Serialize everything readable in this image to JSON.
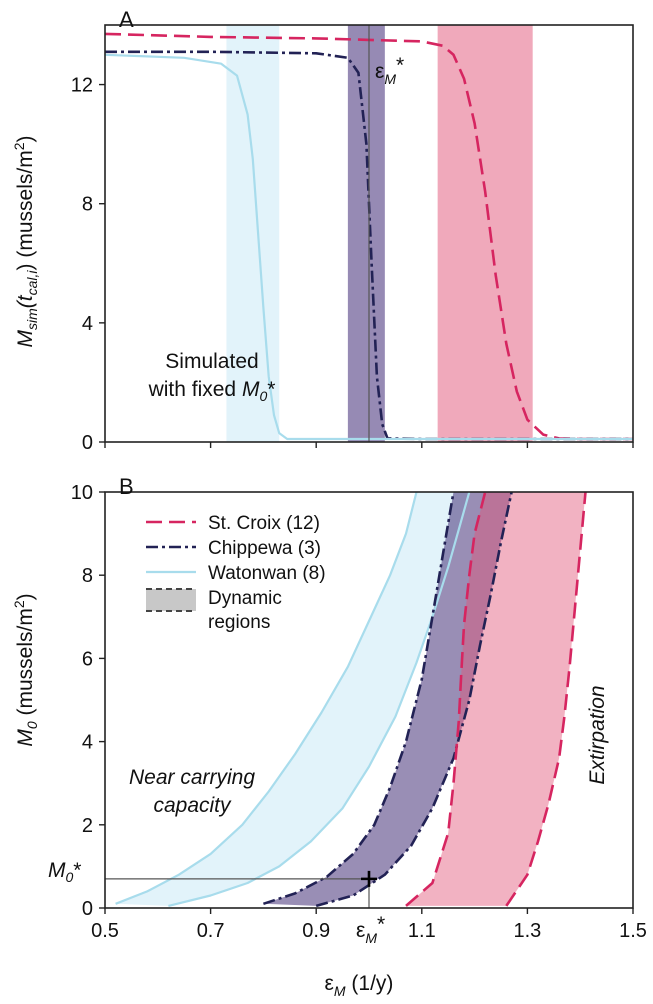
{
  "chart_data": [
    {
      "panel": "A",
      "type": "line",
      "ylabel": {
        "main": "M",
        "sub": "sim",
        "paren_open": "(t",
        "paren_sub": "cal,i",
        "paren_close": ")",
        "units": "(mussels/m",
        "units_sup": "2",
        "units_close": ")"
      },
      "xlim": [
        0.5,
        1.5
      ],
      "ylim": [
        0,
        14
      ],
      "yticks": [
        "0",
        "4",
        "8",
        "12"
      ],
      "yticks_values": [
        0,
        4,
        8,
        12
      ],
      "annotation": {
        "line1": "Simulated",
        "line2_prefix": "with fixed ",
        "line2_sym": "M",
        "line2_sub": "0",
        "line2_suffix": "*"
      },
      "eps_label": {
        "sym": "ε",
        "sub": "M",
        "sup": "*"
      },
      "eps_star": 1.0,
      "regions": [
        {
          "series": "Watonwan (8)",
          "x0": 0.73,
          "x1": 0.83
        },
        {
          "series": "Chippewa (3)",
          "x0": 0.96,
          "x1": 1.03
        },
        {
          "series": "St. Croix (12)",
          "x0": 1.13,
          "x1": 1.31
        }
      ],
      "series": [
        {
          "name": "St. Croix (12)",
          "color": "#d62560",
          "style": "dash",
          "x": [
            0.5,
            0.7,
            0.9,
            1.0,
            1.1,
            1.14,
            1.16,
            1.18,
            1.2,
            1.22,
            1.24,
            1.26,
            1.28,
            1.3,
            1.33,
            1.36,
            1.4,
            1.5
          ],
          "y": [
            13.7,
            13.6,
            13.55,
            13.5,
            13.45,
            13.3,
            13.0,
            12.2,
            10.7,
            8.4,
            5.6,
            3.3,
            1.7,
            0.75,
            0.25,
            0.12,
            0.1,
            0.1
          ]
        },
        {
          "name": "Chippewa (3)",
          "color": "#222255",
          "style": "dashdot",
          "x": [
            0.5,
            0.7,
            0.9,
            0.96,
            0.98,
            0.995,
            1.005,
            1.015,
            1.025,
            1.035,
            1.1,
            1.5
          ],
          "y": [
            13.1,
            13.1,
            13.05,
            12.9,
            12.4,
            10.0,
            6.0,
            2.2,
            0.6,
            0.12,
            0.1,
            0.1
          ]
        },
        {
          "name": "Watonwan (8)",
          "color": "#a8dcec",
          "style": "solid",
          "x": [
            0.5,
            0.65,
            0.72,
            0.75,
            0.77,
            0.78,
            0.79,
            0.8,
            0.81,
            0.82,
            0.83,
            0.845,
            0.9,
            1.5
          ],
          "y": [
            13.0,
            12.9,
            12.7,
            12.3,
            11.0,
            9.5,
            7.0,
            4.5,
            2.2,
            0.9,
            0.3,
            0.1,
            0.1,
            0.1
          ]
        }
      ]
    },
    {
      "panel": "B",
      "type": "line",
      "xlabel": {
        "sym": "ε",
        "sub": "M",
        "units": " (1/y)"
      },
      "ylabel": {
        "main": "M",
        "sub": "0",
        "units": " (mussels/m",
        "units_sup": "2",
        "units_close": ")"
      },
      "xlim": [
        0.5,
        1.5
      ],
      "ylim": [
        0,
        10
      ],
      "xticks": [
        "0.5",
        "0.7",
        "0.9",
        "1.1",
        "1.3",
        "1.5"
      ],
      "xticks_values": [
        0.5,
        0.7,
        0.9,
        1.1,
        1.3,
        1.5
      ],
      "yticks": [
        "0",
        "2",
        "4",
        "6",
        "8",
        "10"
      ],
      "yticks_values": [
        0,
        2,
        4,
        6,
        8,
        10
      ],
      "m0_label": {
        "sym": "M",
        "sub": "0",
        "sup": "*"
      },
      "m0_star": 0.7,
      "eps_label": {
        "sym": "ε",
        "sub": "M",
        "sup": "*"
      },
      "eps_star": 1.0,
      "marker": {
        "x": 1.0,
        "y": 0.7,
        "symbol": "+"
      },
      "text_left": {
        "line1": "Near carrying",
        "line2": "capacity"
      },
      "text_right": "Extirpation",
      "legend": {
        "entries": [
          "St. Croix (12)",
          "Chippewa (3)",
          "Watonwan (8)"
        ],
        "region_line1": "Dynamic",
        "region_line2": "regions"
      },
      "series": [
        {
          "name": "Watonwan (8)",
          "color": "#a8dcec",
          "style": "solid",
          "lower": {
            "x": [
              0.52,
              0.58,
              0.64,
              0.7,
              0.76,
              0.81,
              0.86,
              0.91,
              0.96,
              1.0,
              1.04,
              1.07,
              1.09
            ],
            "y": [
              0.1,
              0.4,
              0.8,
              1.3,
              2.0,
              2.8,
              3.7,
              4.7,
              5.8,
              6.9,
              8.0,
              9.0,
              10.0
            ]
          },
          "upper": {
            "x": [
              0.62,
              0.7,
              0.77,
              0.83,
              0.89,
              0.95,
              1.0,
              1.05,
              1.09,
              1.12,
              1.15,
              1.17,
              1.19
            ],
            "y": [
              0.05,
              0.3,
              0.6,
              1.0,
              1.6,
              2.4,
              3.4,
              4.6,
              5.9,
              7.0,
              8.2,
              9.1,
              10.0
            ]
          }
        },
        {
          "name": "Chippewa (3)",
          "color": "#222255",
          "style": "dashdot",
          "lower": {
            "x": [
              0.8,
              0.86,
              0.92,
              0.97,
              1.01,
              1.04,
              1.07,
              1.1,
              1.12,
              1.14,
              1.16
            ],
            "y": [
              0.1,
              0.35,
              0.75,
              1.3,
              2.0,
              2.9,
              4.0,
              5.5,
              7.0,
              8.5,
              10.0
            ]
          },
          "upper": {
            "x": [
              0.9,
              0.97,
              1.03,
              1.08,
              1.12,
              1.16,
              1.19,
              1.21,
              1.23,
              1.25,
              1.27
            ],
            "y": [
              0.05,
              0.3,
              0.8,
              1.5,
              2.4,
              3.6,
              5.0,
              6.3,
              7.5,
              8.8,
              10.0
            ]
          }
        },
        {
          "name": "St. Croix (12)",
          "color": "#d62560",
          "style": "dash",
          "lower": {
            "x": [
              1.07,
              1.12,
              1.15,
              1.16,
              1.17,
              1.175,
              1.18,
              1.19,
              1.2,
              1.22
            ],
            "y": [
              0.05,
              0.6,
              1.8,
              3.0,
              4.5,
              5.7,
              6.8,
              8.0,
              9.0,
              10.0
            ]
          },
          "upper": {
            "x": [
              1.26,
              1.3,
              1.32,
              1.34,
              1.36,
              1.37,
              1.38,
              1.39,
              1.4,
              1.41
            ],
            "y": [
              0.05,
              0.8,
              1.6,
              2.5,
              3.6,
              4.6,
              5.8,
              7.2,
              8.6,
              10.0
            ]
          }
        }
      ]
    }
  ]
}
